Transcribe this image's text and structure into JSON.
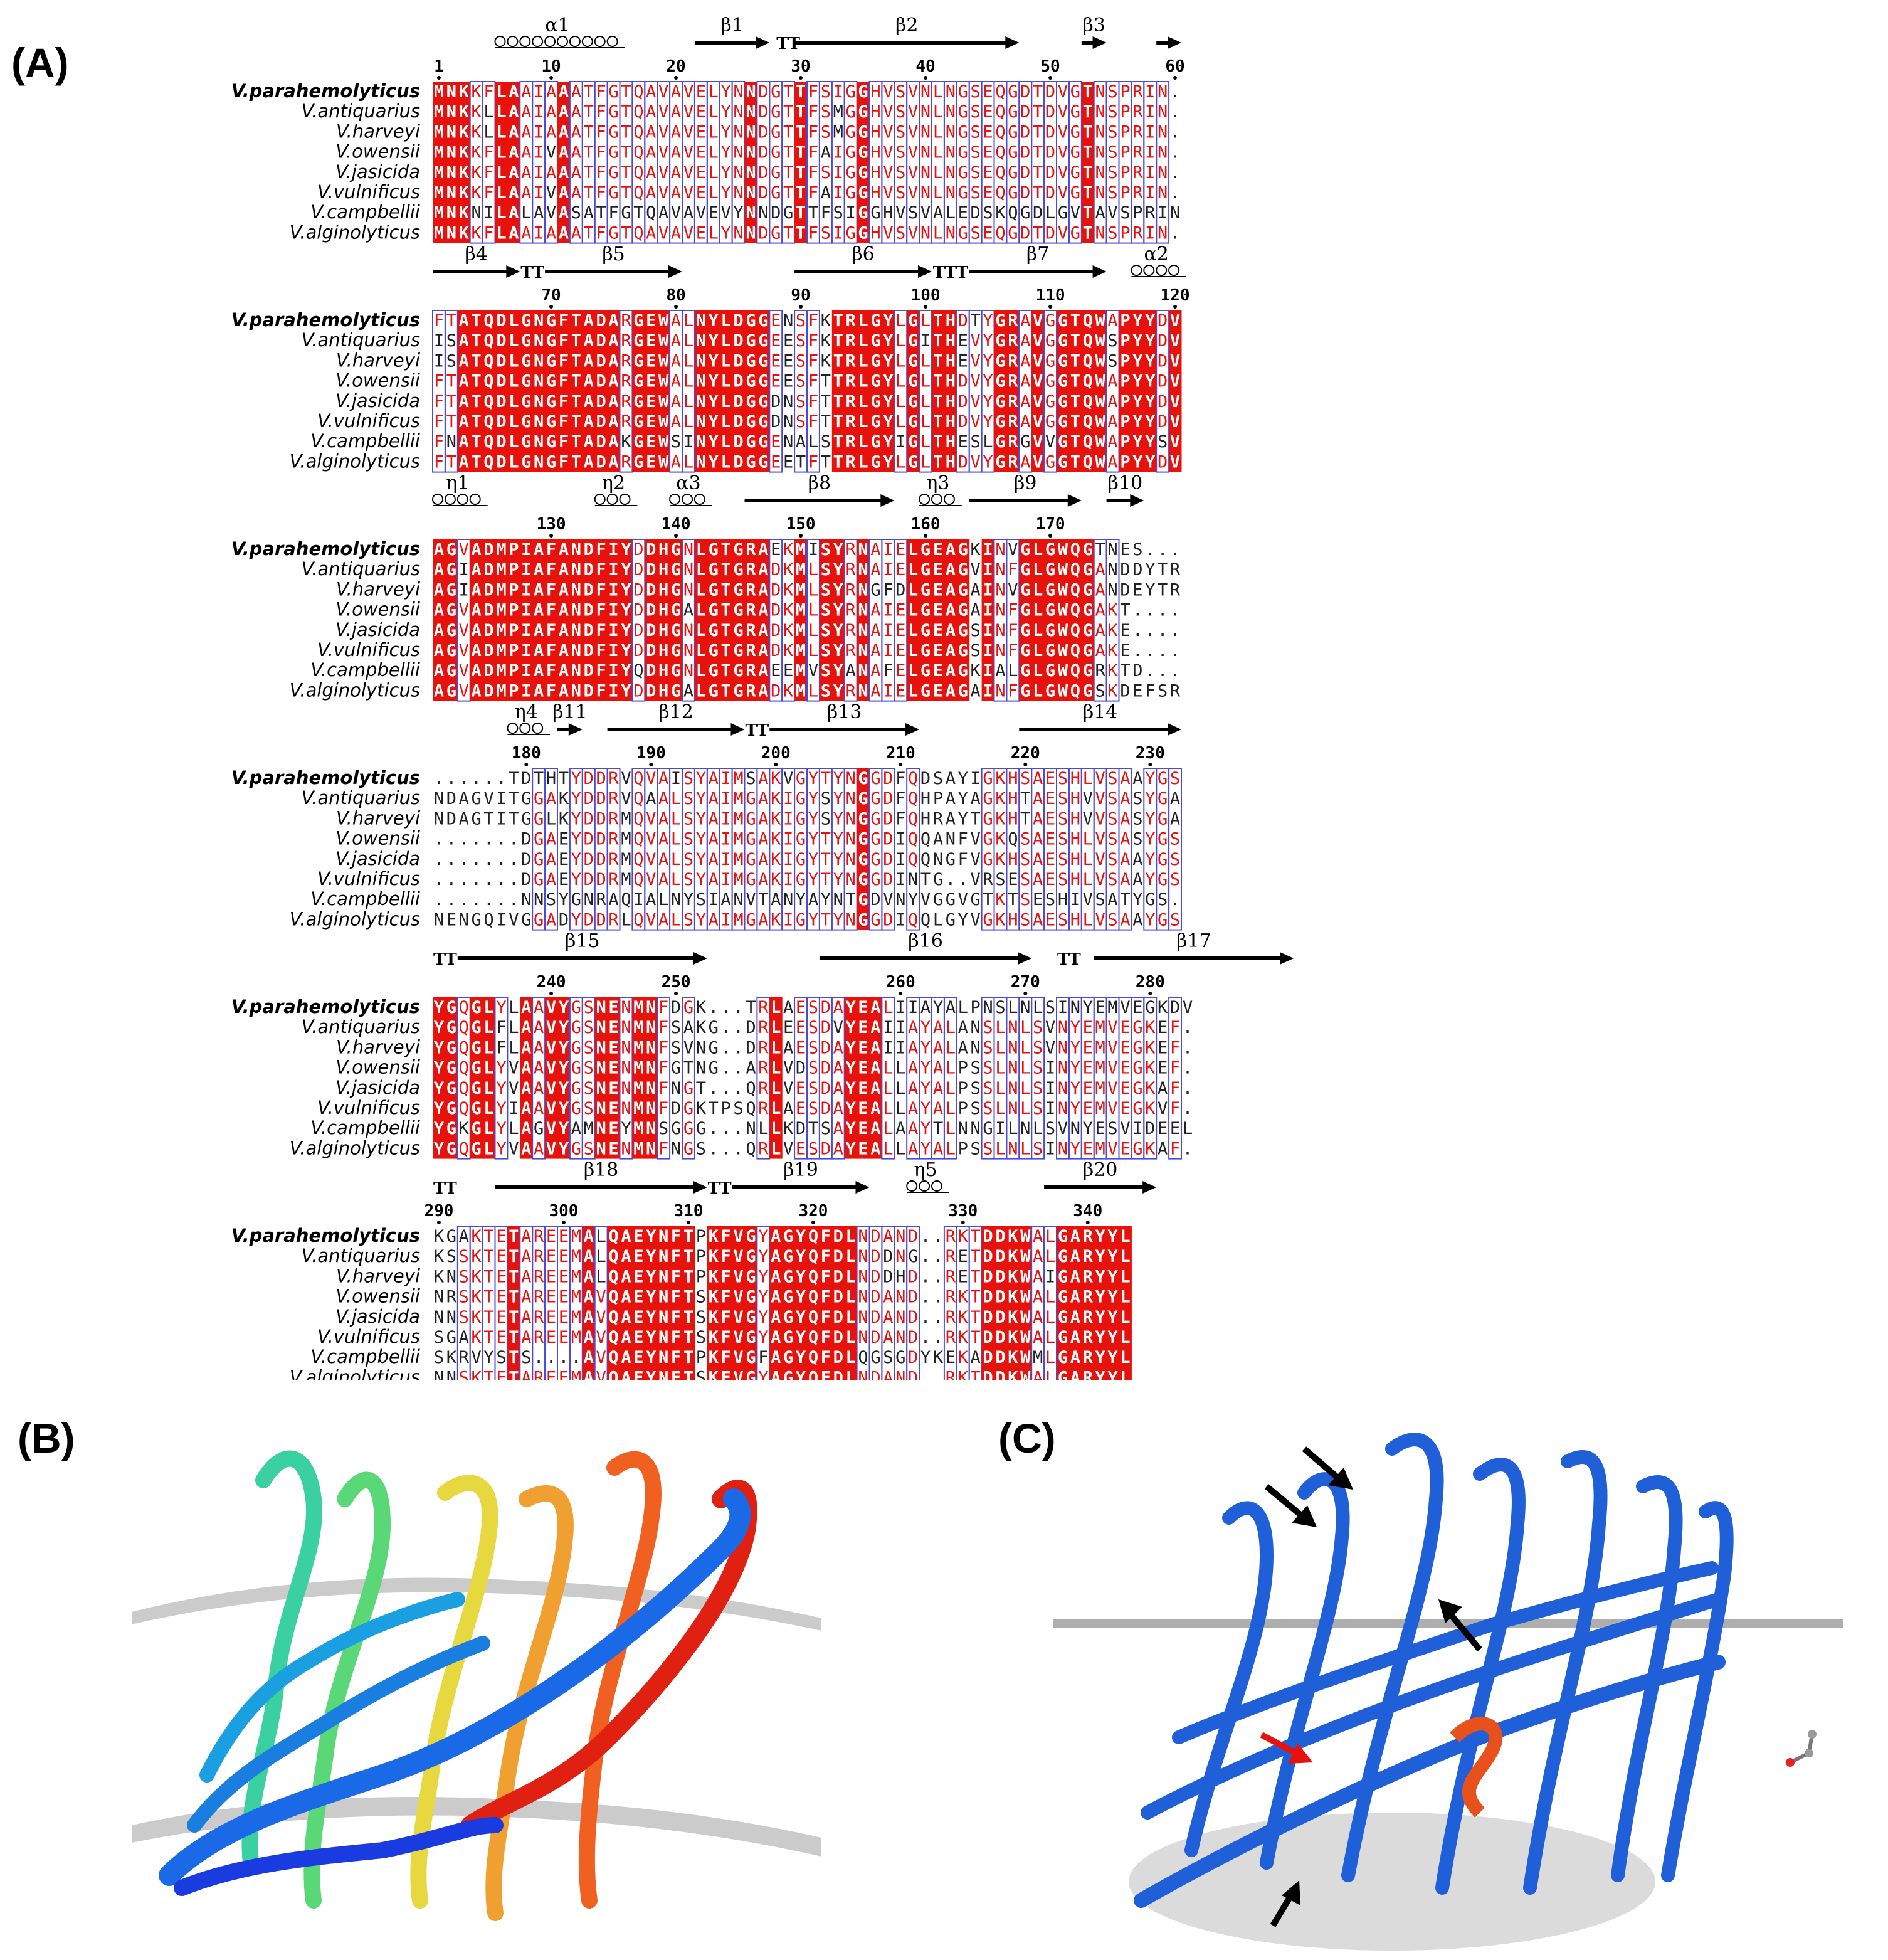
{
  "panels": {
    "a": "(A)",
    "b": "(B)",
    "c": "(C)"
  },
  "colors": {
    "conserved_bg": "#e8120c",
    "conserved_text": "#ffffff",
    "similar_text": "#e8120c",
    "box": "#4a4ad8",
    "other_text": "#222222",
    "membrane": "#9a9a9a",
    "arrow_black": "#000000",
    "arrow_red": "#e8120c",
    "barrel_blue": "#1f5fd8"
  },
  "species": [
    "V.parahemolyticus",
    "V.antiquarius",
    "V.harveyi",
    "V.owensii",
    "V.jasicida",
    "V.vulnificus",
    "V.campbellii",
    "V.alginolyticus"
  ],
  "blocks": [
    {
      "start": 1,
      "ruler": [
        {
          "label": "1",
          "pos": 0
        },
        {
          "label": "10",
          "pos": 9
        },
        {
          "label": "20",
          "pos": 19
        },
        {
          "label": "30",
          "pos": 29
        },
        {
          "label": "40",
          "pos": 39
        },
        {
          "label": "50",
          "pos": 49
        },
        {
          "label": "60",
          "pos": 59
        }
      ],
      "ss": [
        {
          "type": "helix",
          "name": "α1",
          "from": 5,
          "to": 15
        },
        {
          "type": "strand",
          "name": "β1",
          "from": 21,
          "to": 27
        },
        {
          "type": "turn",
          "name": "TT",
          "from": 28,
          "to": 29
        },
        {
          "type": "strand",
          "name": "β2",
          "from": 29,
          "to": 47
        },
        {
          "type": "strand",
          "name": "β3",
          "from": 52,
          "to": 54
        },
        {
          "type": "strand",
          "name": "",
          "from": 58,
          "to": 60
        }
      ],
      "seqs": [
        "MNKKFLAAIAAATFGTQAVAVELYNNDGTTFSIGGHVSVNLNGSEQGDTDVGTNSPRIN",
        "MNKKLLAAIAAATFGTQAVAVELYNNDGTTFSMGGHVSVNLNGSEQGDTDVGTNSPRIN",
        "MNKKLLAAIAAATFGTQAVAVELYNNDGTTFSMGGHVSVNLNGSEQGDTDVGTNSPRIN",
        "MNKKFLAAIVAATFGTQAVAVELYNNDGTTFAIGGHVSVNLNGSEQGDTDVGTNSPRIN",
        "MNKKFLAAIAAATFGTQAVAVELYNNDGTTFSIGGHVSVNLNGSEQGDTDVGTNSPRIN",
        "MNKKFLAAIVAATFGTQAVAVELYNNDGTTFAIGGHVSVNLNGSEQGDTDVGTNSPRIN",
        "MNKNILALAVASATFGTQAVAVEVYNNDGTTFSIGGHVSVALEDSKQGDLGVTAVSPRIN",
        "MNKKFLAAIAAATFGTQAVAVELYNNDGTTFSIGGHVSVNLNGSEQGDTDVGTNSPRIN"
      ]
    },
    {
      "start": 61,
      "ruler": [
        {
          "label": "70",
          "pos": 9
        },
        {
          "label": "80",
          "pos": 19
        },
        {
          "label": "90",
          "pos": 29
        },
        {
          "label": "100",
          "pos": 39
        },
        {
          "label": "110",
          "pos": 49
        },
        {
          "label": "120",
          "pos": 59
        }
      ],
      "ss": [
        {
          "type": "strand",
          "name": "β4",
          "from": 0,
          "to": 7
        },
        {
          "type": "turn",
          "name": "TT",
          "from": 7,
          "to": 9
        },
        {
          "type": "strand",
          "name": "β5",
          "from": 9,
          "to": 20
        },
        {
          "type": "strand",
          "name": "β6",
          "from": 29,
          "to": 40
        },
        {
          "type": "turn",
          "name": "TTT",
          "from": 40,
          "to": 43
        },
        {
          "type": "strand",
          "name": "β7",
          "from": 43,
          "to": 54
        },
        {
          "type": "helix",
          "name": "α2",
          "from": 56,
          "to": 60
        }
      ],
      "seqs": [
        "FTATQDLGNGFTADARGEWALNYLDGGENSFKTRLGYLGLTHDTYGRAVGGTQWAPYYDV",
        "ISATQDLGNGFTADARGEWALNYLDGGEESFKTRLGYLGITHEVYGRAVGGTQWSPYYDV",
        "ISATQDLGNGFTADARGEWALNYLDGGEESFKTRLGYLGLTHEVYGRAVGGTQWSPYYDV",
        "FTATQDLGNGFTADARGEWALNYLDGGEESFTTRLGYLGLTHDVYGRAVGGTQWAPYYDV",
        "FTATQDLGNGFTADARGEWALNYLDGGDNSFTTRLGYLGLTHDVYGRAVGGTQWAPYYDV",
        "FTATQDLGNGFTADARGEWALNYLDGGDNSFTTRLGYLGLTHDVYGRAVGGTQWAPYYDV",
        "FNATQDLGNGFTADAKGEWSINYLDGGENALSTRLGYIGLTHESLGRGVVGTQWAPYYSV",
        "FTATQDLGNGFTADARGEWALNYLDGGEETFTTRLGYLGLTHDVYGRAVGGTQWAPYYDV"
      ]
    },
    {
      "start": 121,
      "ruler": [
        {
          "label": "130",
          "pos": 9
        },
        {
          "label": "140",
          "pos": 19
        },
        {
          "label": "150",
          "pos": 29
        },
        {
          "label": "160",
          "pos": 39
        },
        {
          "label": "170",
          "pos": 49
        }
      ],
      "ss": [
        {
          "type": "helix",
          "name": "η1",
          "from": 0,
          "to": 4
        },
        {
          "type": "helix",
          "name": "η2",
          "from": 13,
          "to": 16
        },
        {
          "type": "helix",
          "name": "α3",
          "from": 19,
          "to": 22
        },
        {
          "type": "strand",
          "name": "β8",
          "from": 25,
          "to": 37
        },
        {
          "type": "helix",
          "name": "η3",
          "from": 39,
          "to": 42
        },
        {
          "type": "strand",
          "name": "β9",
          "from": 43,
          "to": 52
        },
        {
          "type": "strand",
          "name": "β10",
          "from": 54,
          "to": 57
        }
      ],
      "seqs": [
        "AGVADMPIAFANDFIYDDHGNLGTGRAEKMISYRNAIELGEAGKINVGLGWQGTNES...",
        "AGIADMPIAFANDFIYDDHGNLGTGRADKMLSYRNAIELGEAGVINFGLGWQGANDDYTR",
        "AGIADMPIAFANDFIYDDHGNLGTGRADKMLSYRNGFDLGEAGAINVGLGWQGANDEYTR",
        "AGVADMPIAFANDFIYDDHGALGTGRADKMLSYRNAIELGEAGAINFGLGWQGAKT....",
        "AGVADMPIAFANDFIYDDHGNLGTGRADKMLSYRNAIELGEAGSINFGLGWQGAKE....",
        "AGVADMPIAFANDFIYDDHGNLGTGRADKMLSYRNAIELGEAGSINFGLGWQGAKE....",
        "AGVADMPIAFANDFIYQDHGNLGTGRAEEMVSYANAFELGEAGKIALGLGWQGRKTD...",
        "AGVADMPIAFANDFIYDDHGALGTGRADKMLSYRNAIELGEAGAINFGLGWQGSKDEFSR"
      ]
    },
    {
      "start": 181,
      "ruler": [
        {
          "label": "180",
          "pos": 7
        },
        {
          "label": "190",
          "pos": 17
        },
        {
          "label": "200",
          "pos": 27
        },
        {
          "label": "210",
          "pos": 37
        },
        {
          "label": "220",
          "pos": 47
        },
        {
          "label": "230",
          "pos": 57
        }
      ],
      "ss": [
        {
          "type": "helix",
          "name": "η4",
          "from": 6,
          "to": 9
        },
        {
          "type": "strand",
          "name": "β11",
          "from": 10,
          "to": 12
        },
        {
          "type": "strand",
          "name": "β12",
          "from": 14,
          "to": 25
        },
        {
          "type": "turn",
          "name": "TT",
          "from": 25,
          "to": 27
        },
        {
          "type": "strand",
          "name": "β13",
          "from": 27,
          "to": 39
        },
        {
          "type": "strand",
          "name": "β14",
          "from": 47,
          "to": 60
        }
      ],
      "seqs": [
        "......TDTHTYDDRVQVAISYAIMSAKVGYTYNGGDFQDSAYIGKHSAESHLVSAAYGS",
        "NDAGVITGGAKYDDRVQAALSYAIMGAKIGYSYNGGDFQHPAYAGKHTAESHVVSASYGA",
        "NDAGTITGGLKYDDRMQVALSYAIMGAKIGYSYNGGDFQHRAYTGKHTAESHVVSASYGA",
        ".......DGAEYDDRMQVALSYAIMGAKIGYTYNGGDIQQANFVGKQSAESHLVSASYGS",
        ".......DGAEYDDRMQVALSYAIMGAKIGYTYNGGDIQQNGFVGKHSAESHLVSAAYGS",
        ".......DGAEYDDRMQVALSYAIMGAKIGYTYNGGDINTG..VRSESAESHLVSAAYGS",
        ".......NNSYGNRAQIALNYSIANVTANYAYNTGDVNYVGGVGTKTSESHIVSATYGS",
        "NENGQIVGGADYDDRLQVALSYAIMGAKIGYTYNGGDIQQLGYVGKHSAESHLVSAAYGS"
      ]
    },
    {
      "start": 241,
      "ruler": [
        {
          "label": "240",
          "pos": 9
        },
        {
          "label": "250",
          "pos": 19
        },
        {
          "label": "260",
          "pos": 37
        },
        {
          "label": "270",
          "pos": 47
        },
        {
          "label": "280",
          "pos": 57
        }
      ],
      "ss": [
        {
          "type": "turn",
          "name": "TT",
          "from": 0,
          "to": 2
        },
        {
          "type": "strand",
          "name": "β15",
          "from": 2,
          "to": 22
        },
        {
          "type": "strand",
          "name": "β16",
          "from": 31,
          "to": 48
        },
        {
          "type": "turn",
          "name": "TT",
          "from": 50,
          "to": 52
        },
        {
          "type": "strand",
          "name": "β17",
          "from": 53,
          "to": 69
        }
      ],
      "seqs": [
        "YGQGLYLAAVYGSNENMNFDGK...TRLAESDAYEALIIAYALPNSLNLSINYEMVEGKDV",
        "YGQGLFLAAVYGSNENMNFSAKG..DRLEESDVYEAIIAYALANSLNLSVNYEMVEGKEF",
        "YGQGLFLAAVYGSNENMNFSVNG..DRLAESDAYEAIIAYALANSLNLSVNYEMVEGKEF",
        "YGQGLYVAAVYGSNENMNFGTNG..ARLVDSDAYEALLAYALPSSLNLSINYEMVEGKEF",
        "YGQGLYVAAVYGSNENMNFNGT...QRLVESDAYEALLAYALPSSLNLSINYEMVEGKAF",
        "YGQGLYIAAVYGSNENMNFDGKTPSQRLAESDAYEALLAYALPSSLNLSINYEMVEGKVF",
        "YGKGLYLAGVYAMNEYMNSGGG...NLLKDTSAYEALAAYTLNNGILNLSVNYESVIDEEL",
        "YGQGLYVAAVYGSNENMNFNGS...QRLVESDAYEALLAYALPSSLNLSINYEMVEGKAF"
      ]
    },
    {
      "start": 301,
      "ruler": [
        {
          "label": "290",
          "pos": 0
        },
        {
          "label": "300",
          "pos": 10
        },
        {
          "label": "310",
          "pos": 20
        },
        {
          "label": "320",
          "pos": 30
        },
        {
          "label": "330",
          "pos": 42
        },
        {
          "label": "340",
          "pos": 52
        }
      ],
      "ss": [
        {
          "type": "turn",
          "name": "TT",
          "from": 0,
          "to": 2
        },
        {
          "type": "strand",
          "name": "β18",
          "from": 5,
          "to": 22
        },
        {
          "type": "turn",
          "name": "TT",
          "from": 22,
          "to": 24
        },
        {
          "type": "strand",
          "name": "β19",
          "from": 24,
          "to": 35
        },
        {
          "type": "helix",
          "name": "η5",
          "from": 38,
          "to": 41
        },
        {
          "type": "strand",
          "name": "β20",
          "from": 49,
          "to": 58
        }
      ],
      "seqs": [
        "KGAKTETAREEMALQAEYNFTPKFVGYAGYQFDLNDAND..RKTDDKWALGARYYL",
        "KSSKTETAREEMALQAEYNFTPKFVGYAGYQFDLNDDNG..RETDDKWALGARYYL",
        "KNSKTETAREEMALQAEYNFTPKFVGYAGYQFDLNDDHD..RETDDKWAIGARYYL",
        "NRSKTETAREEMAVQAEYNFTSKFVGYAGYQFDLNDAND..RKTDDKWALGARYYL",
        "NNSKTETAREEMAVQAEYNFTSKFVGYAGYQFDLNDAND..RKTDDKWALGARYYL",
        "SGAKTETAREEMAVQAEYNFTSKFVGYAGYQFDLNDAND..RKTDDKWALGARYYL",
        "SKRVYSTS....AVQAEYNFTPKFVGFAGYQFDLQGSGDYKEKADDKWMLGARYYL",
        "NNSKTETAREEMAVQAEYNFTSKFVGYAGYQFDLNDAND..RKTDDKWALGARYYL"
      ]
    }
  ]
}
